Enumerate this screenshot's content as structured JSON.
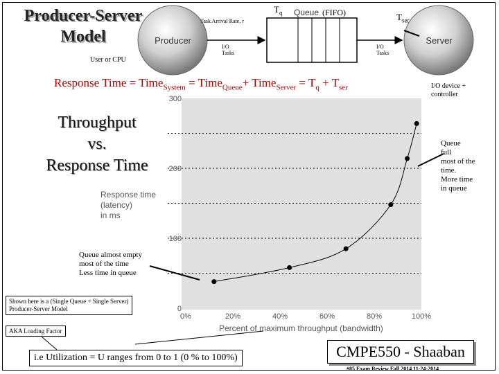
{
  "title": {
    "line1": "Producer-Server",
    "line2": "Model"
  },
  "diagram": {
    "producer_label": "Producer",
    "server_label": "Server",
    "queue_label": "Queue",
    "fifo_label": "(FIFO)",
    "tq_label": "T",
    "tq_sub": "q",
    "tser_label": "T",
    "tser_sub": "ser",
    "arrival_rate": "Task Arrival Rate, r",
    "io_tasks_left_1": "I/O",
    "io_tasks_left_2": "Tasks",
    "io_tasks_right_1": "I/O",
    "io_tasks_right_2": "Tasks",
    "user_cpu": "User or CPU",
    "io_device_1": "I/O device +",
    "io_device_2": "controller"
  },
  "response_equation": {
    "p1": "Response Time  =  Time",
    "s1": "System",
    "p2": " = Time",
    "s2": "Queue",
    "p3": "+  Time",
    "s3": "Server",
    "p4": " =  T",
    "s4": "q",
    "p5": " + T",
    "s5": "ser"
  },
  "throughput": {
    "line1": "Throughput",
    "line2": "vs.",
    "line3": "Response Time"
  },
  "annotations": {
    "queue_full": [
      "Queue",
      "full",
      "most of the",
      "time.",
      "More time",
      "in queue"
    ],
    "queue_empty": [
      "Queue almost empty",
      "most of the time",
      "Less time in queue"
    ],
    "shown_here": [
      "Shown here is a (Single Queue + Single Server)",
      "Producer-Server Model"
    ],
    "aka": "AKA Loading Factor",
    "utilization": "i.e Utilization = U  ranges from 0 to 1  (0 % to 100%)"
  },
  "chart_data": {
    "type": "line",
    "ylabel_lines": [
      "Response time",
      "(latency)",
      "in ms"
    ],
    "xlabel": "Percent of maximum throughput (bandwidth)",
    "ylim": [
      0,
      300
    ],
    "xlim": [
      0,
      100
    ],
    "yticks": [
      "0",
      "100",
      "200",
      "300"
    ],
    "xticks": [
      "0%",
      "20%",
      "40%",
      "60%",
      "80%",
      "100%"
    ],
    "grid": "dotted horizontal",
    "points": [
      {
        "x": 12,
        "y": 38
      },
      {
        "x": 44,
        "y": 58
      },
      {
        "x": 68,
        "y": 85
      },
      {
        "x": 87,
        "y": 148
      },
      {
        "x": 94,
        "y": 214
      },
      {
        "x": 98,
        "y": 264
      }
    ]
  },
  "cmpe": "CMPE550 - Shaaban",
  "footer": "#85   Exam Review  Fall 2014   11-24-2014",
  "colors": {
    "accent_red": "#b30000",
    "plot_bg": "#e0e0e0"
  }
}
